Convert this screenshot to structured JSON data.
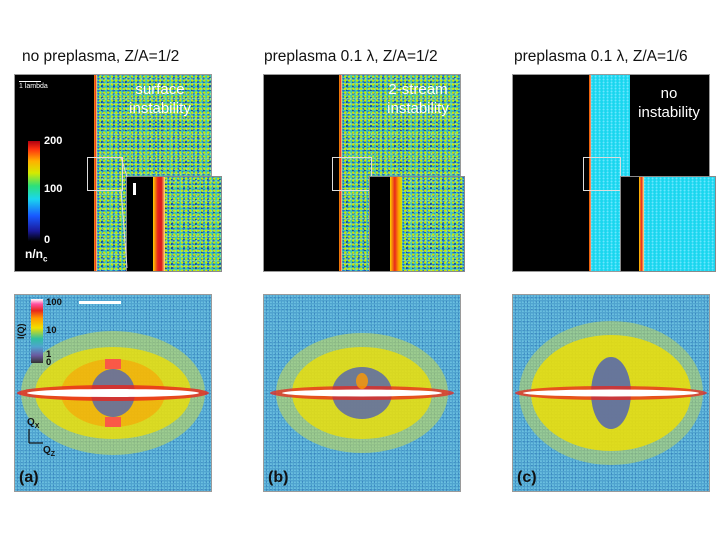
{
  "titles": {
    "a": "no preplasma, Z/A=1/2",
    "b": "preplasma 0.1 λ, Z/A=1/2",
    "c": "preplasma 0.1 λ, Z/A=1/6"
  },
  "sim_labels": {
    "a": "surface instability",
    "b": "2-stream instability",
    "c": "no instability"
  },
  "scale_bar_label": "1 lambda",
  "density_colorbar": {
    "ticks": [
      "200",
      "100",
      "0"
    ],
    "unit_main": "n/n",
    "unit_sub": "c"
  },
  "intensity_colorbar": {
    "ticks": [
      "100",
      "10",
      "1",
      "0"
    ],
    "unit": "I(Q)"
  },
  "axes": {
    "qx": "Q",
    "qx_sub": "X",
    "qz": "Q",
    "qz_sub": "Z"
  },
  "panel_labels": {
    "a": "(a)",
    "b": "(b)",
    "c": "(c)"
  },
  "colors": {
    "plasma": "#3ec7b4",
    "plasma_uniform": "#1ad6ee",
    "surface": "#e8261c",
    "fft_background": "#4fa3cf",
    "fft_yellow": "#f0e000",
    "fft_core": "#ffffff"
  }
}
